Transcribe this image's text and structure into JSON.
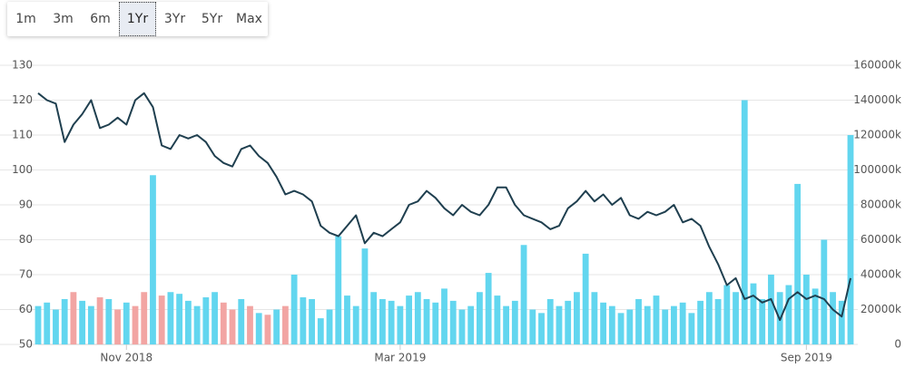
{
  "range_selector": {
    "buttons": [
      "1m",
      "3m",
      "6m",
      "1Yr",
      "3Yr",
      "5Yr",
      "Max"
    ],
    "selected": 3
  },
  "chart_data": {
    "type": "line",
    "ylim": [
      50,
      130
    ],
    "yticks": [
      50,
      60,
      70,
      80,
      90,
      100,
      110,
      120,
      130
    ],
    "y2lim": [
      0,
      160000
    ],
    "y2ticks": [
      0,
      {
        "value": 20000,
        "label": "20000k"
      },
      {
        "value": 40000,
        "label": "40000k"
      },
      {
        "value": 60000,
        "label": "60000k"
      },
      {
        "value": 80000,
        "label": "80000k"
      },
      {
        "value": 100000,
        "label": "100000k"
      },
      {
        "value": 120000,
        "label": "120000k"
      },
      {
        "value": 140000,
        "label": "140000k"
      },
      {
        "value": 160000,
        "label": "160000k"
      }
    ],
    "xlim": [
      0,
      92
    ],
    "xticks": [
      {
        "value": 10,
        "label": "Nov 2018"
      },
      {
        "value": 41,
        "label": "Mar 2019"
      },
      {
        "value": 87,
        "label": "Sep 2019"
      }
    ],
    "grid": true,
    "series": [
      {
        "type": "line",
        "color": "#1f3f4f",
        "values": [
          122,
          120,
          119,
          108,
          113,
          116,
          120,
          112,
          113,
          115,
          113,
          120,
          122,
          118,
          107,
          106,
          110,
          109,
          110,
          108,
          104,
          102,
          101,
          106,
          107,
          104,
          102,
          98,
          93,
          94,
          93,
          91,
          84,
          82,
          81,
          84,
          87,
          79,
          82,
          81,
          83,
          85,
          90,
          91,
          94,
          92,
          89,
          87,
          90,
          88,
          87,
          90,
          95,
          95,
          90,
          87,
          86,
          85,
          83,
          84,
          89,
          91,
          94,
          91,
          93,
          90,
          92,
          87,
          86,
          88,
          87,
          88,
          90,
          85,
          86,
          84,
          78,
          73,
          67,
          69,
          63,
          64,
          62,
          63,
          57,
          63,
          65,
          63,
          64,
          63,
          60,
          58,
          69
        ]
      },
      {
        "type": "bar",
        "axis": "y2",
        "color": "#62d6ef",
        "values": [
          22000,
          24000,
          20000,
          26000,
          30000,
          25000,
          22000,
          27000,
          26000,
          20000,
          24000,
          22000,
          30000,
          97000,
          28000,
          30000,
          29000,
          25000,
          22000,
          27000,
          30000,
          24000,
          20000,
          26000,
          22000,
          18000,
          17000,
          20000,
          22000,
          40000,
          27000,
          26000,
          15000,
          20000,
          62000,
          28000,
          22000,
          55000,
          30000,
          26000,
          25000,
          22000,
          28000,
          30000,
          26000,
          24000,
          32000,
          25000,
          20000,
          22000,
          30000,
          41000,
          28000,
          22000,
          25000,
          57000,
          20000,
          18000,
          26000,
          22000,
          25000,
          30000,
          52000,
          30000,
          24000,
          22000,
          18000,
          20000,
          26000,
          22000,
          28000,
          20000,
          22000,
          24000,
          18000,
          25000,
          30000,
          26000,
          34000,
          30000,
          140000,
          35000,
          26000,
          40000,
          30000,
          34000,
          92000,
          40000,
          32000,
          60000,
          30000,
          25000,
          120000
        ],
        "down_color": "#f2a5a3",
        "down_indices": [
          4,
          7,
          9,
          11,
          12,
          14,
          21,
          22,
          24,
          26,
          28
        ]
      }
    ]
  }
}
